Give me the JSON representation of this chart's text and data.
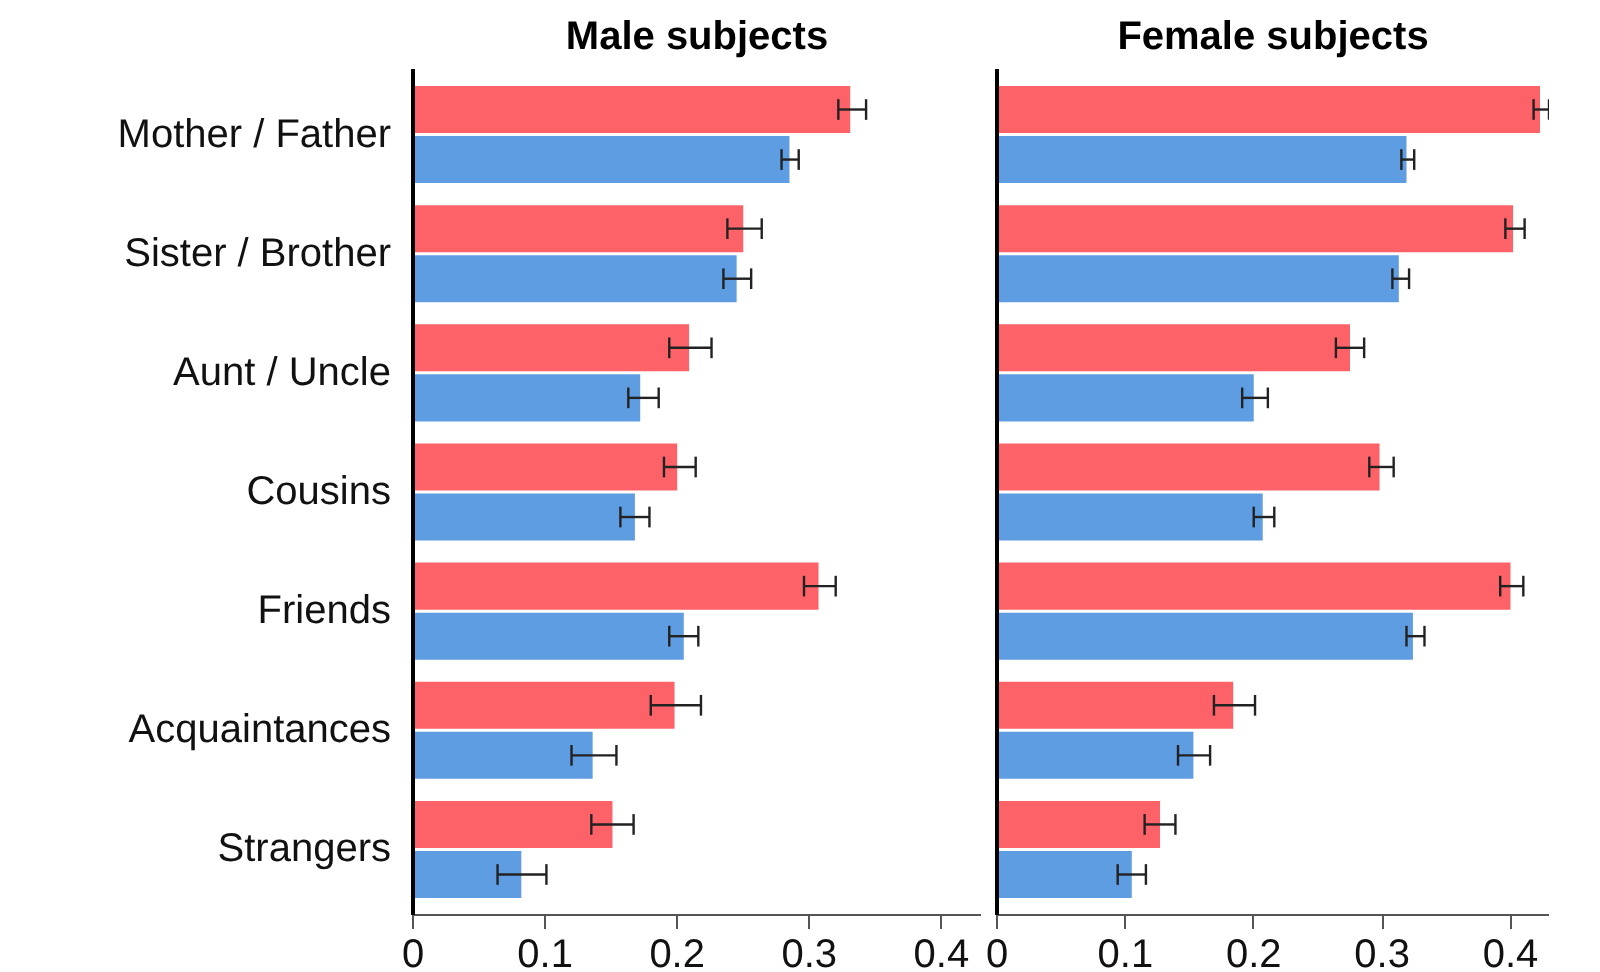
{
  "chart_data": [
    {
      "type": "bar",
      "orientation": "horizontal",
      "title": "Male subjects",
      "categories": [
        "Mother / Father",
        "Sister / Brother",
        "Aunt / Uncle",
        "Cousins",
        "Friends",
        "Acquaintances",
        "Strangers"
      ],
      "series": [
        {
          "color": "#fe6269",
          "values": [
            0.331,
            0.25,
            0.209,
            0.2,
            0.307,
            0.198,
            0.151
          ],
          "errors": [
            [
              0.322,
              0.343
            ],
            [
              0.238,
              0.264
            ],
            [
              0.194,
              0.226
            ],
            [
              0.19,
              0.214
            ],
            [
              0.296,
              0.32
            ],
            [
              0.18,
              0.218
            ],
            [
              0.135,
              0.167
            ]
          ]
        },
        {
          "color": "#5f9de3",
          "values": [
            0.285,
            0.245,
            0.172,
            0.168,
            0.205,
            0.136,
            0.082
          ],
          "errors": [
            [
              0.279,
              0.292
            ],
            [
              0.235,
              0.256
            ],
            [
              0.163,
              0.186
            ],
            [
              0.157,
              0.179
            ],
            [
              0.194,
              0.216
            ],
            [
              0.12,
              0.154
            ],
            [
              0.064,
              0.101
            ]
          ]
        }
      ],
      "xlim": [
        0,
        0.43
      ],
      "xticks": [
        0,
        0.1,
        0.2,
        0.3,
        0.4
      ],
      "grid": false
    },
    {
      "type": "bar",
      "orientation": "horizontal",
      "title": "Female subjects",
      "categories": [
        null,
        null,
        null,
        null,
        null,
        null,
        null
      ],
      "series": [
        {
          "color": "#fe6269",
          "values": [
            0.423,
            0.402,
            0.275,
            0.298,
            0.4,
            0.184,
            0.127
          ],
          "errors": [
            [
              0.418,
              0.43
            ],
            [
              0.396,
              0.411
            ],
            [
              0.264,
              0.286
            ],
            [
              0.29,
              0.309
            ],
            [
              0.392,
              0.41
            ],
            [
              0.169,
              0.201
            ],
            [
              0.115,
              0.139
            ]
          ]
        },
        {
          "color": "#5f9de3",
          "values": [
            0.319,
            0.313,
            0.2,
            0.207,
            0.324,
            0.153,
            0.105
          ],
          "errors": [
            [
              0.315,
              0.325
            ],
            [
              0.308,
              0.321
            ],
            [
              0.191,
              0.211
            ],
            [
              0.2,
              0.216
            ],
            [
              0.319,
              0.333
            ],
            [
              0.141,
              0.166
            ],
            [
              0.094,
              0.116
            ]
          ]
        }
      ],
      "xlim": [
        0,
        0.43
      ],
      "xticks": [
        0,
        0.1,
        0.2,
        0.3,
        0.4
      ],
      "grid": false
    }
  ]
}
